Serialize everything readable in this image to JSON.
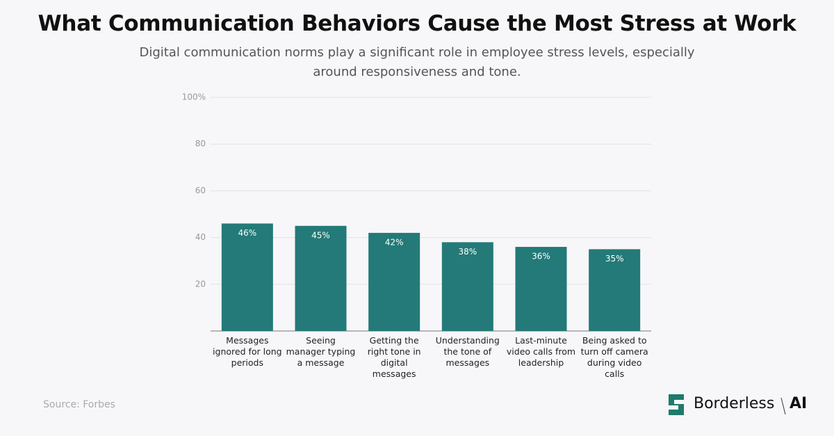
{
  "chart_data": {
    "type": "bar",
    "title": "What Communication Behaviors Cause the Most Stress at Work",
    "subtitle": "Digital communication norms play a significant role in employee stress levels, especially around responsiveness and tone.",
    "categories": [
      "Messages ignored for long periods",
      "Seeing manager typing a message",
      "Getting the right tone in digital messages",
      "Understanding the tone of messages",
      "Last-minute video calls from leadership",
      "Being asked to turn off camera during video calls"
    ],
    "values": [
      46,
      45,
      42,
      38,
      36,
      35
    ],
    "value_labels": [
      "46%",
      "45%",
      "42%",
      "38%",
      "36%",
      "35%"
    ],
    "color": "#237a78",
    "ylim": [
      0,
      100
    ],
    "yticks": [
      20,
      40,
      60,
      80,
      {
        "value": 100,
        "label": "100%"
      }
    ],
    "grid": true
  },
  "footer": {
    "source": "Source: Forbes",
    "brand_name": "Borderless",
    "brand_suffix": "AI"
  }
}
